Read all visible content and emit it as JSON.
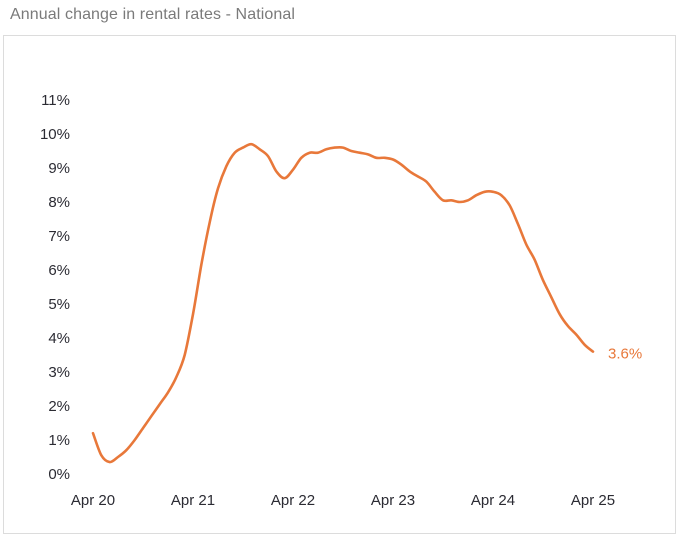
{
  "header": {
    "title": "Annual change in rental rates - National"
  },
  "colors": {
    "line": "#E8783A",
    "end_label": "#E8783A",
    "axis_text": "#2B2B33",
    "title_text": "#7A7A7A",
    "frame_border": "#DCDCDC"
  },
  "annotation": {
    "end_label": "3.6%"
  },
  "chart_data": {
    "type": "line",
    "title": "Annual change in rental rates - National",
    "xlabel": "",
    "ylabel": "",
    "ylim": [
      0,
      11
    ],
    "grid": false,
    "legend": null,
    "y_ticks": [
      "0%",
      "1%",
      "2%",
      "3%",
      "4%",
      "5%",
      "6%",
      "7%",
      "8%",
      "9%",
      "10%",
      "11%"
    ],
    "x_ticks": [
      "Apr 20",
      "Apr 21",
      "Apr 22",
      "Apr 23",
      "Apr 24",
      "Apr 25"
    ],
    "annotations": [
      {
        "text": "3.6%",
        "at": "Apr 25"
      }
    ],
    "series": [
      {
        "name": "Annual change in rental rates - National",
        "frequency": "monthly",
        "start": "Apr 20",
        "end": "Apr 25",
        "values": [
          1.2,
          0.55,
          0.35,
          0.5,
          0.7,
          1.0,
          1.35,
          1.7,
          2.05,
          2.4,
          2.85,
          3.5,
          4.7,
          6.15,
          7.4,
          8.4,
          9.05,
          9.45,
          9.6,
          9.7,
          9.55,
          9.35,
          8.9,
          8.7,
          8.95,
          9.3,
          9.45,
          9.45,
          9.55,
          9.6,
          9.6,
          9.5,
          9.45,
          9.4,
          9.3,
          9.3,
          9.25,
          9.1,
          8.9,
          8.75,
          8.6,
          8.3,
          8.05,
          8.05,
          8.0,
          8.05,
          8.2,
          8.3,
          8.3,
          8.2,
          7.9,
          7.35,
          6.75,
          6.3,
          5.7,
          5.2,
          4.7,
          4.35,
          4.1,
          3.8,
          3.6
        ]
      }
    ]
  }
}
